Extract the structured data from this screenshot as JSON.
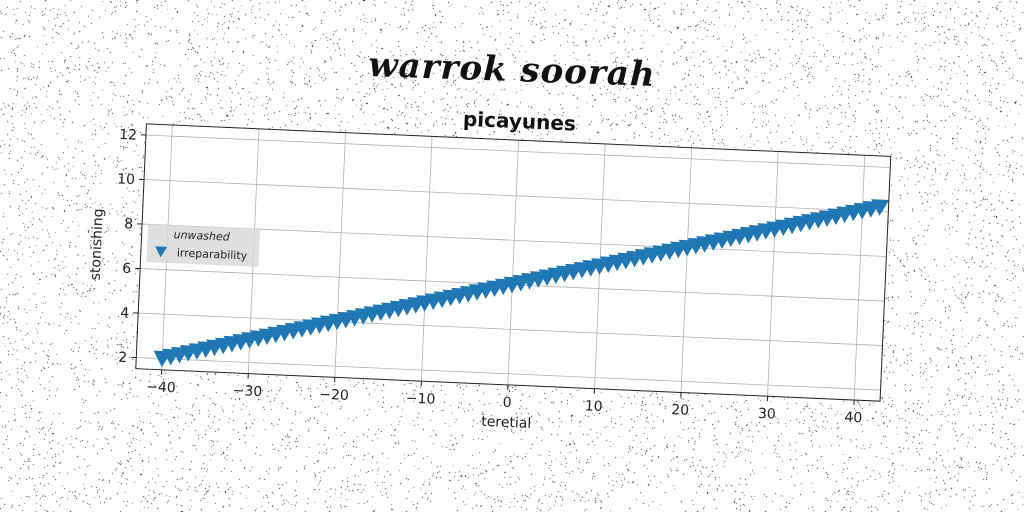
{
  "suptitle": "warrok soorah",
  "chart_data": {
    "type": "scatter",
    "title": "picayunes",
    "xlabel": "teretial",
    "ylabel": "stonishing",
    "xlim": [
      -43,
      43
    ],
    "ylim": [
      1.5,
      12.5
    ],
    "xticks": [
      -40,
      -30,
      -20,
      -10,
      0,
      10,
      20,
      30,
      40
    ],
    "yticks": [
      2,
      4,
      6,
      8,
      10,
      12
    ],
    "xtick_labels": [
      "−40",
      "−30",
      "−20",
      "−10",
      "0",
      "10",
      "20",
      "30",
      "40"
    ],
    "ytick_labels": [
      "2",
      "4",
      "6",
      "8",
      "10",
      "12"
    ],
    "grid": true,
    "legend": {
      "title": "unwashed",
      "placement": "center-left"
    },
    "series": [
      {
        "name": "irreparability",
        "marker": "triangle-down",
        "color": "#1f77b4",
        "x": [
          -40,
          -39,
          -38,
          -37,
          -36,
          -35,
          -34,
          -33,
          -32,
          -31,
          -30,
          -29,
          -28,
          -27,
          -26,
          -25,
          -24,
          -23,
          -22,
          -21,
          -20,
          -19,
          -18,
          -17,
          -16,
          -15,
          -14,
          -13,
          -12,
          -11,
          -10,
          -9,
          -8,
          -7,
          -6,
          -5,
          -4,
          -3,
          -2,
          -1,
          0,
          1,
          2,
          3,
          4,
          5,
          6,
          7,
          8,
          9,
          10,
          11,
          12,
          13,
          14,
          15,
          16,
          17,
          18,
          19,
          20,
          21,
          22,
          23,
          24,
          25,
          26,
          27,
          28,
          29,
          30,
          31,
          32,
          33,
          34,
          35,
          36,
          37,
          38,
          39,
          40,
          41,
          42
        ],
        "y": [
          2.0,
          2.1,
          2.2,
          2.3,
          2.4,
          2.5,
          2.6,
          2.7,
          2.8,
          2.9,
          3.0,
          3.1,
          3.2,
          3.3,
          3.4,
          3.5,
          3.6,
          3.7,
          3.8,
          3.9,
          4.0,
          4.1,
          4.2,
          4.3,
          4.4,
          4.5,
          4.6,
          4.7,
          4.8,
          4.9,
          5.0,
          5.1,
          5.2,
          5.3,
          5.4,
          5.5,
          5.6,
          5.7,
          5.8,
          5.9,
          6.0,
          6.1,
          6.2,
          6.3,
          6.4,
          6.5,
          6.6,
          6.7,
          6.8,
          6.9,
          7.0,
          7.1,
          7.2,
          7.3,
          7.4,
          7.5,
          7.6,
          7.7,
          7.8,
          7.9,
          8.0,
          8.1,
          8.2,
          8.3,
          8.4,
          8.5,
          8.6,
          8.7,
          8.8,
          8.9,
          9.0,
          9.1,
          9.2,
          9.3,
          9.4,
          9.5,
          9.6,
          9.7,
          9.8,
          9.9,
          10.0,
          10.1,
          10.2
        ]
      }
    ]
  }
}
